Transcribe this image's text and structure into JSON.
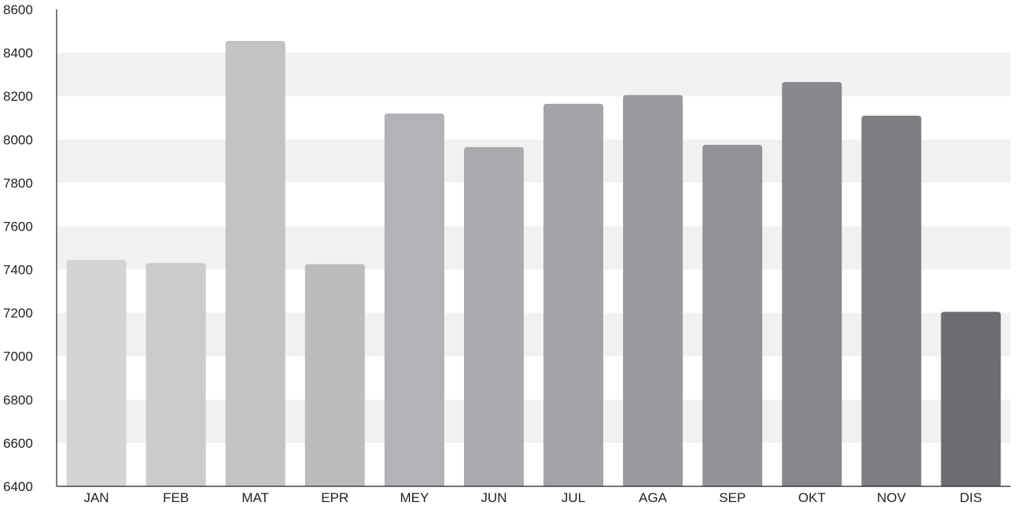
{
  "chart_data": {
    "type": "bar",
    "title": "",
    "xlabel": "",
    "ylabel": "",
    "ylim": [
      6400,
      8600
    ],
    "yticks": [
      6400,
      6600,
      6800,
      7000,
      7200,
      7400,
      7600,
      7800,
      8000,
      8200,
      8400,
      8600
    ],
    "grid": "alternating horizontal bands",
    "legend": "none",
    "categories": [
      "JAN",
      "FEB",
      "MAT",
      "EPR",
      "MEY",
      "JUN",
      "JUL",
      "AGA",
      "SEP",
      "OKT",
      "NOV",
      "DIS"
    ],
    "values": [
      7445,
      7430,
      8455,
      7425,
      8120,
      7965,
      8165,
      8205,
      7975,
      8265,
      8110,
      7205
    ],
    "colors": [
      "#d3d4d6",
      "#cacbcd",
      "#c2c3c5",
      "#bbbcbe",
      "#b2b3b6",
      "#aaabae",
      "#a2a3a6",
      "#9a9b9e",
      "#929396",
      "#87888b",
      "#7d7e81",
      "#6c6d70"
    ],
    "band_color": "#f1f1f2",
    "axis_color": "#222222"
  }
}
